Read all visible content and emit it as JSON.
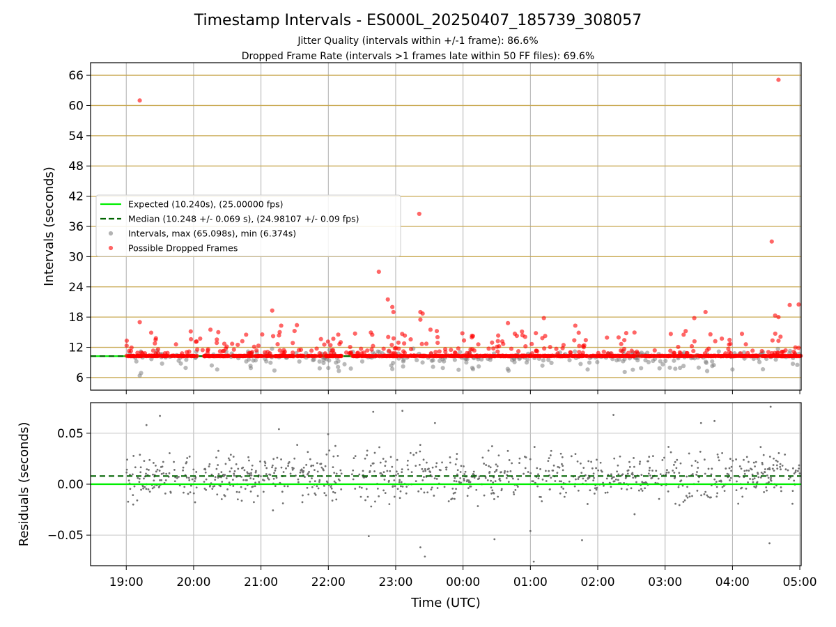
{
  "chart_data": [
    {
      "type": "scatter",
      "title": "Timestamp Intervals - ES000L_20250407_185739_308057",
      "subtitle_lines": [
        "Jitter Quality (intervals within +/-1 frame): 86.6%",
        "Dropped Frame Rate (intervals >1 frames late within 50 FF files): 69.6%"
      ],
      "ylabel": "Intervals (seconds)",
      "xlabel": "",
      "x_is_time_hours": true,
      "xlim": [
        18.47,
        29.02
      ],
      "ylim": [
        3.5,
        68.5
      ],
      "yticks": [
        6,
        12,
        18,
        24,
        30,
        36,
        42,
        48,
        54,
        60,
        66
      ],
      "grid": true,
      "legend_position": "center-left",
      "expected_interval": 10.24,
      "median_interval": 10.248,
      "series": [
        {
          "name": "Expected (10.240s), (25.00000 fps)",
          "kind": "line",
          "color": "#00ee00",
          "style": "solid",
          "y": 10.24
        },
        {
          "name": "Median (10.248 +/- 0.069 s), (24.98107 +/- 0.09 fps)",
          "kind": "line",
          "color": "#006400",
          "style": "dashed",
          "y": 10.248
        },
        {
          "name": "Intervals, max (65.098s), min (6.374s)",
          "kind": "scatter",
          "color": "#808080",
          "max": 65.098,
          "min": 6.374
        },
        {
          "name": "Possible Dropped Frames",
          "kind": "scatter",
          "color": "#ff0000"
        }
      ],
      "dropped_outliers": [
        {
          "x": "19:12",
          "y": 61.0
        },
        {
          "x": "19:12",
          "y": 17.0
        },
        {
          "x": "20:15",
          "y": 15.5
        },
        {
          "x": "20:22",
          "y": 15.0
        },
        {
          "x": "21:10",
          "y": 19.3
        },
        {
          "x": "21:18",
          "y": 16.3
        },
        {
          "x": "21:32",
          "y": 16.4
        },
        {
          "x": "22:45",
          "y": 27.0
        },
        {
          "x": "22:53",
          "y": 21.5
        },
        {
          "x": "22:57",
          "y": 20.0
        },
        {
          "x": "22:58",
          "y": 19.0
        },
        {
          "x": "23:21",
          "y": 38.5
        },
        {
          "x": "23:22",
          "y": 19.0
        },
        {
          "x": "23:24",
          "y": 18.7
        },
        {
          "x": "23:22",
          "y": 17.5
        },
        {
          "x": "23:31",
          "y": 15.5
        },
        {
          "x": "00:40",
          "y": 16.8
        },
        {
          "x": "01:12",
          "y": 17.8
        },
        {
          "x": "01:40",
          "y": 16.3
        },
        {
          "x": "03:26",
          "y": 17.8
        },
        {
          "x": "03:36",
          "y": 19.0
        },
        {
          "x": "04:35",
          "y": 33.0
        },
        {
          "x": "04:41",
          "y": 65.1
        },
        {
          "x": "04:51",
          "y": 20.4
        },
        {
          "x": "04:59",
          "y": 20.5
        },
        {
          "x": "04:38",
          "y": 18.3
        },
        {
          "x": "04:41",
          "y": 18.0
        }
      ],
      "xtick_labels": [
        "19:00",
        "20:00",
        "21:00",
        "22:00",
        "23:00",
        "00:00",
        "01:00",
        "02:00",
        "03:00",
        "04:00",
        "05:00"
      ]
    },
    {
      "type": "scatter",
      "title": "",
      "xlabel": "Time (UTC)",
      "ylabel": "Residuals (seconds)",
      "x_is_time_hours": true,
      "xlim": [
        18.47,
        29.02
      ],
      "ylim": [
        -0.08,
        0.08
      ],
      "yticks": [
        -0.05,
        0.0,
        0.05
      ],
      "ytick_labels": [
        "−0.05",
        "0.00",
        "0.05"
      ],
      "grid": true,
      "series": [
        {
          "name": "",
          "kind": "line",
          "color": "#00ee00",
          "style": "solid",
          "y": 0.0
        },
        {
          "name": "",
          "kind": "line",
          "color": "#006400",
          "style": "dashed",
          "y": 0.008
        },
        {
          "name": "",
          "kind": "scatter",
          "color": "#707070",
          "approx_std": 0.012,
          "count_approx": 3500
        }
      ],
      "residual_outliers": [
        {
          "x": "19:18",
          "y": 0.058
        },
        {
          "x": "19:30",
          "y": 0.067
        },
        {
          "x": "21:16",
          "y": 0.054
        },
        {
          "x": "22:40",
          "y": 0.071
        },
        {
          "x": "23:06",
          "y": 0.072
        },
        {
          "x": "23:35",
          "y": 0.06
        },
        {
          "x": "23:26",
          "y": -0.071
        },
        {
          "x": "23:22",
          "y": -0.062
        },
        {
          "x": "01:03",
          "y": -0.076
        },
        {
          "x": "00:28",
          "y": -0.054
        },
        {
          "x": "04:34",
          "y": 0.076
        },
        {
          "x": "04:33",
          "y": -0.058
        },
        {
          "x": "01:00",
          "y": -0.046
        },
        {
          "x": "22:36",
          "y": -0.051
        },
        {
          "x": "01:46",
          "y": -0.055
        },
        {
          "x": "02:14",
          "y": 0.068
        },
        {
          "x": "03:44",
          "y": 0.062
        },
        {
          "x": "03:32",
          "y": 0.06
        }
      ],
      "xtick_labels": [
        "19:00",
        "20:00",
        "21:00",
        "22:00",
        "23:00",
        "00:00",
        "01:00",
        "02:00",
        "03:00",
        "04:00",
        "05:00"
      ]
    }
  ]
}
